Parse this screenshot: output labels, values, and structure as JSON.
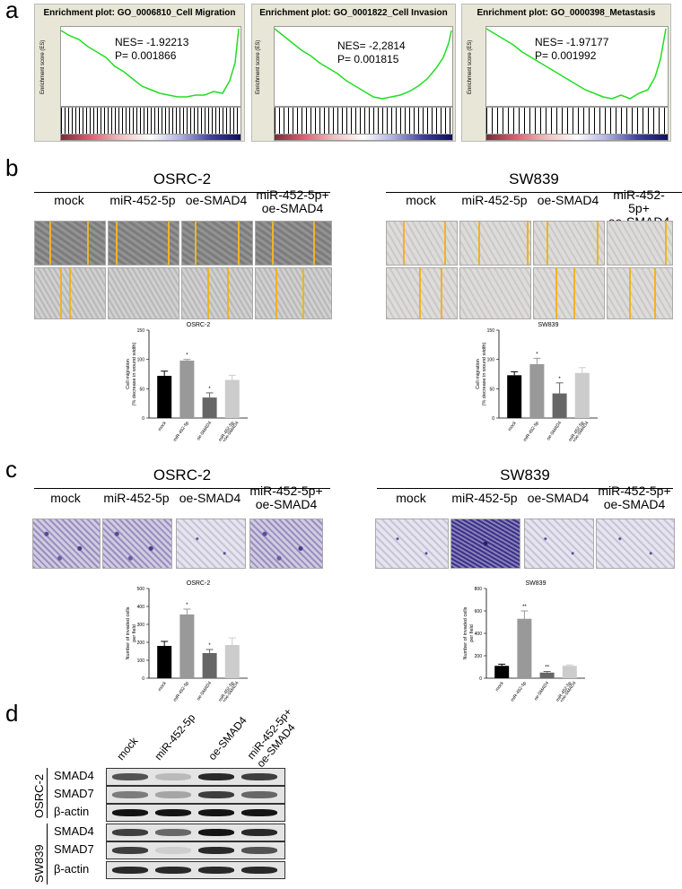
{
  "panels": {
    "a": "a",
    "b": "b",
    "c": "c",
    "d": "d"
  },
  "gsea": [
    {
      "title": "Enrichment plot: GO_0006810_Cell Migration",
      "nes": "NES= -1.92213",
      "p": "P= 0.001866",
      "ylabel": "Enrichment score (ES)"
    },
    {
      "title": "Enrichment plot: GO_0001822_Cell Invasion",
      "nes": "NES= -2,2814",
      "p": "P= 0.001815",
      "ylabel": "Enrichment score (ES)"
    },
    {
      "title": "Enrichment plot: GO_0000398_Metastasis",
      "nes": "NES= -1.97177",
      "p": "P= 0.001992",
      "ylabel": "Enrichment score (ES)"
    }
  ],
  "groups": {
    "b_left": "OSRC-2",
    "b_right": "SW839",
    "c_left": "OSRC-2",
    "c_right": "SW839"
  },
  "conditions": [
    "mock",
    "miR-452-5p",
    "oe-SMAD4",
    "miR-452-5p+\noe-SMAD4"
  ],
  "chart_data": [
    {
      "type": "bar",
      "title": "OSRC-2",
      "categories": [
        "mock",
        "miR-452-5p",
        "oe-SMAD4",
        "miR-452-5p\n+oe-SMAD4"
      ],
      "values": [
        72,
        98,
        35,
        65
      ],
      "errors": [
        8,
        2,
        8,
        8
      ],
      "ylabel": "Cell migration\n(% decrease in wound width)",
      "ylim": [
        0,
        150
      ],
      "yticks": [
        "0",
        "50",
        "100",
        "150"
      ],
      "stars": [
        "",
        "*",
        "*",
        ""
      ]
    },
    {
      "type": "bar",
      "title": "SW839",
      "categories": [
        "mock",
        "miR-452-5p",
        "oe-SMAD4",
        "miR-452-5p\n+oe-SMAD4"
      ],
      "values": [
        73,
        92,
        42,
        77
      ],
      "errors": [
        6,
        10,
        18,
        9
      ],
      "ylabel": "Cell migration\n(% decrease in wound width)",
      "ylim": [
        0,
        150
      ],
      "yticks": [
        "0",
        "50",
        "100",
        "150"
      ],
      "stars": [
        "",
        "*",
        "*",
        ""
      ]
    },
    {
      "type": "bar",
      "title": "OSRC-2",
      "categories": [
        "mock",
        "miR-452-5p",
        "oe-SMAD4",
        "miR-452-5p\n+oe-SMAD4"
      ],
      "values": [
        180,
        355,
        140,
        185
      ],
      "errors": [
        25,
        30,
        20,
        40
      ],
      "ylabel": "Number of invaded cells\nper field",
      "ylim": [
        0,
        500
      ],
      "yticks": [
        "0",
        "100",
        "200",
        "300",
        "400",
        "500"
      ],
      "stars": [
        "",
        "*",
        "*",
        ""
      ]
    },
    {
      "type": "bar",
      "title": "SW839",
      "categories": [
        "mock",
        "miR-452-5p",
        "oe-SMAD4",
        "miR-452-5p\n+oe-SMAD4"
      ],
      "values": [
        110,
        530,
        50,
        110
      ],
      "errors": [
        15,
        70,
        10,
        8
      ],
      "ylabel": "Number of invaded cells\nper field",
      "ylim": [
        0,
        800
      ],
      "yticks": [
        "0",
        "200",
        "400",
        "600",
        "800"
      ],
      "stars": [
        "",
        "**",
        "**",
        ""
      ]
    }
  ],
  "western": {
    "lanes": [
      "mock",
      "miR-452-5p",
      "oe-SMAD4",
      "miR-452-5p+\noe-SMAD4"
    ],
    "cell_lines": [
      "OSRC-2",
      "SW839"
    ],
    "proteins": [
      "SMAD4",
      "SMAD7",
      "β-actin",
      "SMAD4",
      "SMAD7",
      "β-actin"
    ]
  },
  "colors": {
    "gsea_line": "#22dd22",
    "wound_line": "#f0b420",
    "bar_colors": [
      "#000000",
      "#999999",
      "#666666",
      "#cccccc"
    ]
  }
}
